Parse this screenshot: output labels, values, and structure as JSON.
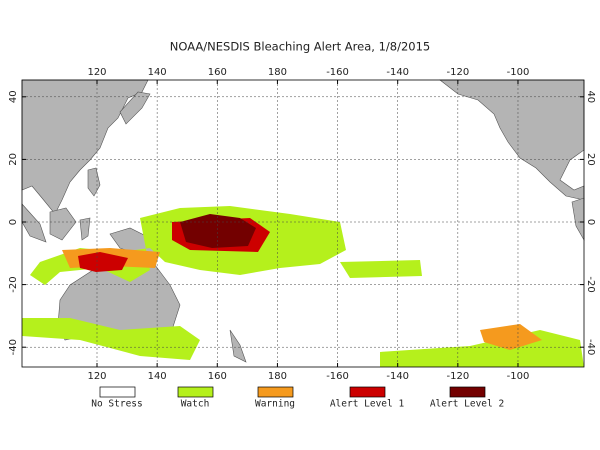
{
  "title": "NOAA/NESDIS Bleaching Alert Area, 1/8/2015",
  "lon_ticks": [
    120,
    140,
    160,
    180,
    -160,
    -140,
    -120,
    -100
  ],
  "lat_ticks": [
    40,
    20,
    0,
    -20,
    -40
  ],
  "legend": [
    "No Stress",
    "Watch",
    "Warning",
    "Alert Level 1",
    "Alert Level 2"
  ]
}
